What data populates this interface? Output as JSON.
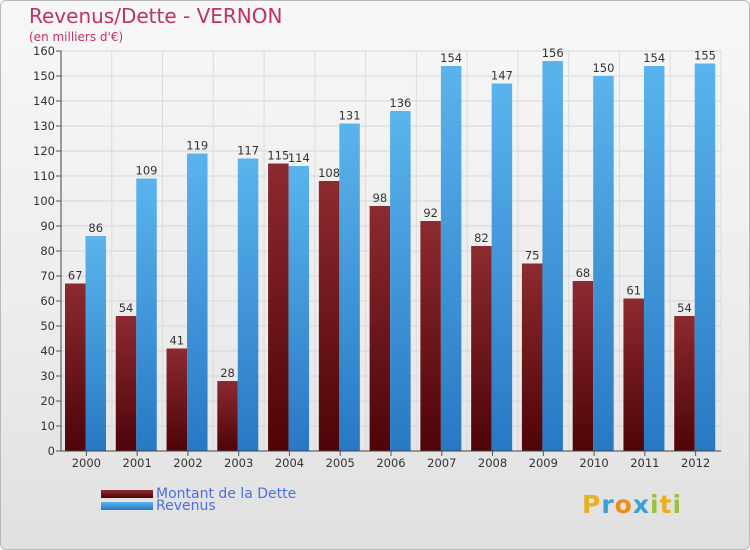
{
  "chart_data": {
    "type": "bar",
    "title": "Revenus/Dette - VERNON",
    "subtitle": "(en milliers d'€)",
    "xlabel": "",
    "ylabel": "",
    "ylim": [
      0,
      160
    ],
    "ytick_step": 10,
    "grid": true,
    "categories": [
      "2000",
      "2001",
      "2002",
      "2003",
      "2004",
      "2005",
      "2006",
      "2007",
      "2008",
      "2009",
      "2010",
      "2011",
      "2012"
    ],
    "series": [
      {
        "name": "Montant de la Dette",
        "color": "#7a0f14",
        "values": [
          67,
          54,
          41,
          28,
          115,
          108,
          98,
          92,
          82,
          75,
          68,
          61,
          54
        ]
      },
      {
        "name": "Revenus",
        "color": "#3f9ee0",
        "values": [
          86,
          109,
          119,
          117,
          114,
          131,
          136,
          154,
          147,
          156,
          150,
          154,
          155
        ]
      }
    ],
    "legend_position": "bottom-left"
  },
  "logo": {
    "letters": [
      "P",
      "r",
      "o",
      "x",
      "i",
      "t",
      "i"
    ],
    "colors": [
      "#e8b020",
      "#3aa0d8",
      "#f08a1a",
      "#3aa0d8",
      "#9ac23a",
      "#e8b020",
      "#9ac23a"
    ]
  }
}
